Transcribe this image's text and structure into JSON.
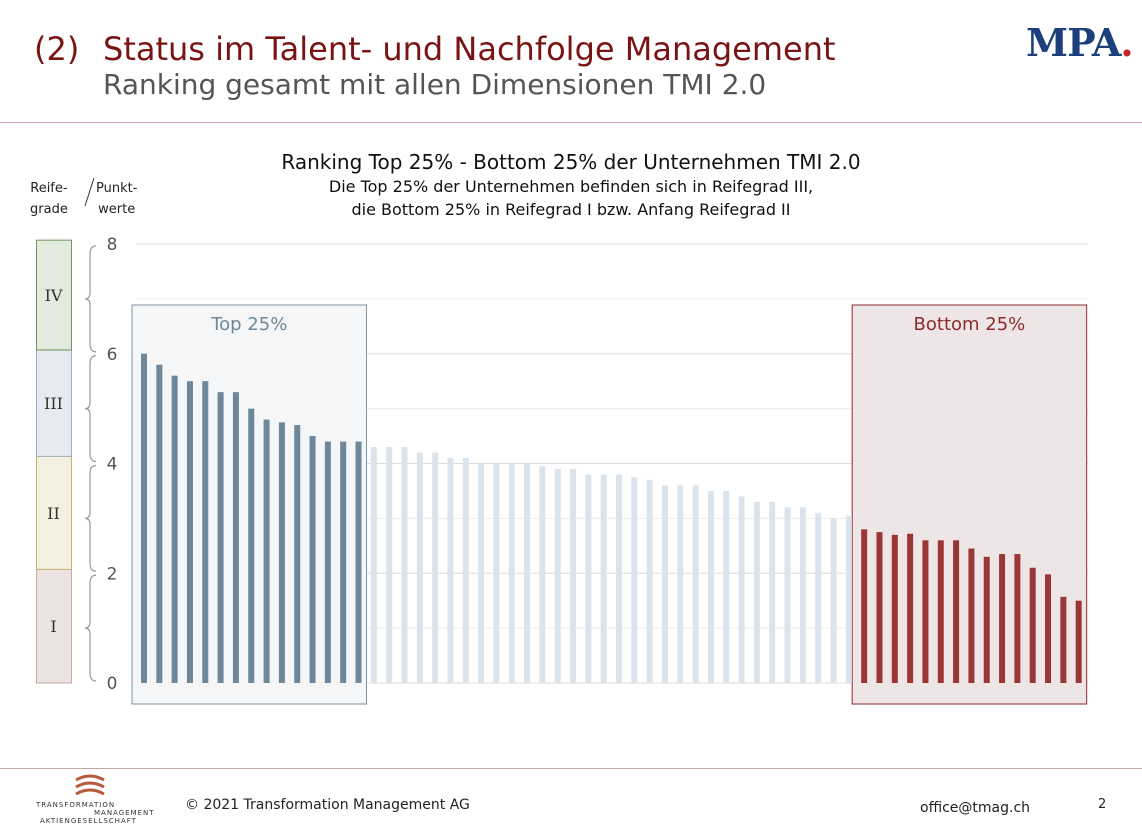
{
  "header": {
    "number": "(2)",
    "title": "Status im Talent- und Nachfolge Management",
    "subtitle": "Ranking gesamt mit allen Dimensionen TMI 2.0",
    "logo_text": "MPA",
    "logo_dot": "."
  },
  "footer": {
    "copyright": "© 2021 Transformation Management AG",
    "email": "office@tmag.ch",
    "page": "2",
    "logo_line1": "TRANSFORMATION",
    "logo_line2": "MANAGEMENT",
    "logo_line3": "AKTIENGESELLSCHAFT"
  },
  "colors": {
    "top": "#6e8799",
    "middle": "#dbe4ed",
    "bottom": "#9c3636",
    "brand": "#7a1414"
  },
  "chart_data": {
    "type": "bar",
    "title": "Ranking Top 25% - Bottom 25% der Unternehmen TMI 2.0",
    "subtitle_lines": [
      "Die Top 25% der Unternehmen befinden sich in Reifegrad III,",
      "die Bottom 25% in Reifegrad I bzw. Anfang Reifegrad II"
    ],
    "ylim": [
      0,
      8
    ],
    "yticks": [
      0,
      2,
      4,
      6,
      8
    ],
    "grid": true,
    "axis_label_left": [
      "Reife-",
      "grade"
    ],
    "axis_label_right": [
      "Punkt-",
      "werte"
    ],
    "maturity_levels": [
      {
        "label": "I",
        "from": 0,
        "to": 2.07,
        "fill": "#ebe2e2",
        "stroke": "#c9a8a8"
      },
      {
        "label": "II",
        "from": 2.07,
        "to": 4.13,
        "fill": "#f4f1e0",
        "stroke": "#c4b26e"
      },
      {
        "label": "III",
        "from": 4.13,
        "to": 6.07,
        "fill": "#e5ebf1",
        "stroke": "#9fb1c1"
      },
      {
        "label": "IV",
        "from": 6.07,
        "to": 8.07,
        "fill": "#e3ebdf",
        "stroke": "#6f9660"
      }
    ],
    "groups": [
      {
        "label": "Top 25%",
        "start": 0,
        "end": 14
      },
      {
        "label": "Bottom 25%",
        "start": 47,
        "end": 61
      }
    ],
    "series": [
      {
        "values": [
          6.0,
          5.8,
          5.6,
          5.5,
          5.5,
          5.3,
          5.3,
          5.0,
          4.8,
          4.75,
          4.7,
          4.5,
          4.4,
          4.4,
          4.4,
          4.3,
          4.3,
          4.3,
          4.2,
          4.2,
          4.1,
          4.1,
          4.0,
          4.0,
          4.0,
          4.0,
          3.95,
          3.9,
          3.9,
          3.8,
          3.8,
          3.8,
          3.75,
          3.7,
          3.6,
          3.6,
          3.6,
          3.5,
          3.5,
          3.4,
          3.3,
          3.3,
          3.2,
          3.2,
          3.1,
          3.0,
          3.05,
          2.8,
          2.75,
          2.7,
          2.72,
          2.6,
          2.6,
          2.6,
          2.45,
          2.3,
          2.35,
          2.35,
          2.1,
          1.98,
          1.57,
          1.5
        ]
      }
    ]
  }
}
